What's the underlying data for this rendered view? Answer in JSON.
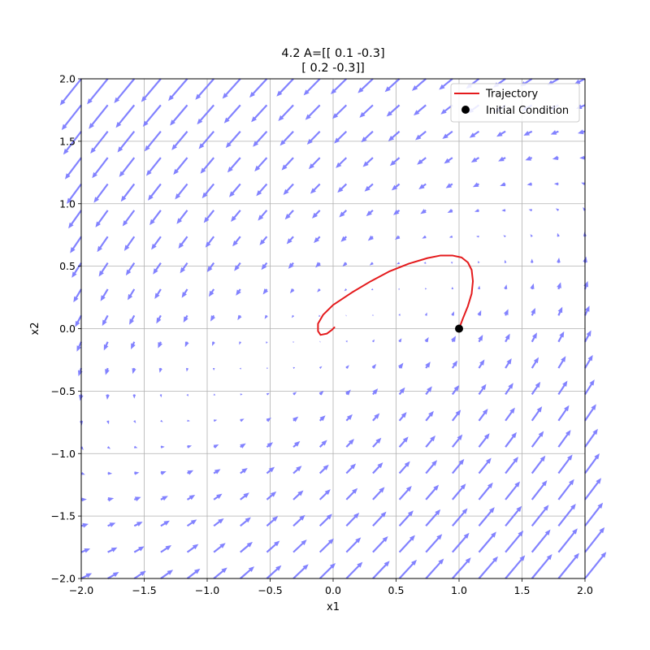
{
  "chart_data": {
    "type": "quiver+line",
    "title_lines": [
      "4.2 A=[[ 0.1 -0.3]",
      "[ 0.2 -0.3]]"
    ],
    "xlabel": "x1",
    "ylabel": "x2",
    "xlim": [
      -2.0,
      2.0
    ],
    "ylim": [
      -2.0,
      2.0
    ],
    "xticks": [
      -2.0,
      -1.5,
      -1.0,
      -0.5,
      0.0,
      0.5,
      1.0,
      1.5,
      2.0
    ],
    "yticks": [
      -2.0,
      -1.5,
      -1.0,
      -0.5,
      0.0,
      0.5,
      1.0,
      1.5,
      2.0
    ],
    "xtick_labels": [
      "−2.0",
      "−1.5",
      "−1.0",
      "−0.5",
      "0.0",
      "0.5",
      "1.0",
      "1.5",
      "2.0"
    ],
    "ytick_labels": [
      "−2.0",
      "−1.5",
      "−1.0",
      "−0.5",
      "0.0",
      "0.5",
      "1.0",
      "1.5",
      "2.0"
    ],
    "grid": true,
    "legend_placement": "top-right",
    "matrix_A": [
      [
        0.1,
        -0.3
      ],
      [
        0.2,
        -0.3
      ]
    ],
    "vector_field": {
      "x_range": [
        -2.0,
        2.0
      ],
      "y_range": [
        -2.0,
        2.0
      ],
      "count": 20,
      "color": "#7b7bff"
    },
    "series": [
      {
        "name": "Trajectory",
        "kind": "line",
        "color": "#e41a1c",
        "initial_condition": [
          1.0,
          0.0
        ],
        "points": [
          [
            1.0,
            0.0
          ],
          [
            1.03,
            0.08
          ],
          [
            1.07,
            0.18
          ],
          [
            1.1,
            0.28
          ],
          [
            1.11,
            0.38
          ],
          [
            1.1,
            0.47
          ],
          [
            1.07,
            0.53
          ],
          [
            1.02,
            0.57
          ],
          [
            0.95,
            0.585
          ],
          [
            0.85,
            0.585
          ],
          [
            0.75,
            0.565
          ],
          [
            0.6,
            0.52
          ],
          [
            0.45,
            0.46
          ],
          [
            0.3,
            0.38
          ],
          [
            0.15,
            0.29
          ],
          [
            0.0,
            0.19
          ],
          [
            -0.08,
            0.11
          ],
          [
            -0.12,
            0.04
          ],
          [
            -0.12,
            -0.02
          ],
          [
            -0.1,
            -0.05
          ],
          [
            -0.05,
            -0.04
          ],
          [
            -0.01,
            -0.01
          ],
          [
            0.01,
            0.01
          ],
          [
            0.0,
            0.0
          ]
        ]
      },
      {
        "name": "Initial Condition",
        "kind": "marker",
        "color": "#000000",
        "x": [
          1.0
        ],
        "y": [
          0.0
        ]
      }
    ]
  }
}
